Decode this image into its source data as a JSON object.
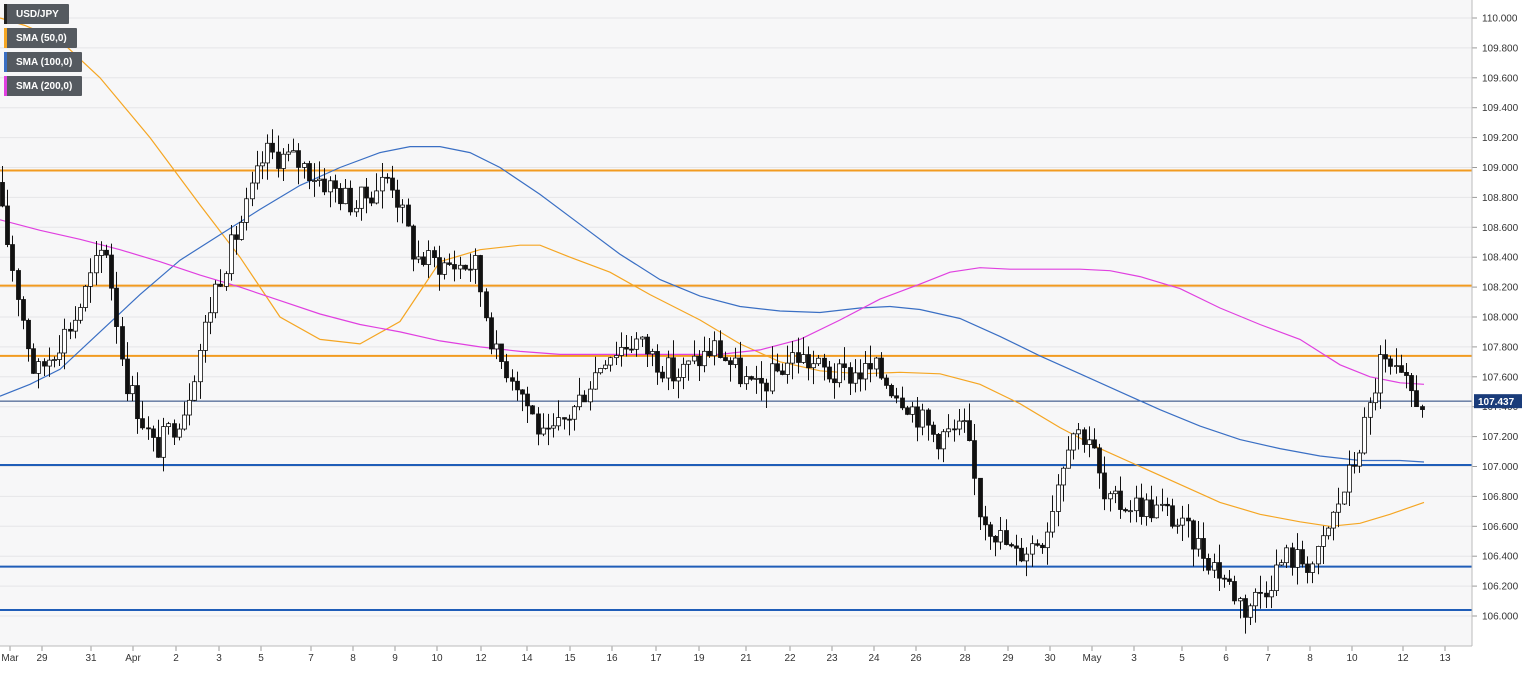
{
  "chart_data": {
    "type": "candlestick",
    "symbol": "USD/JPY",
    "last_price": "107.437",
    "legend": [
      {
        "label": "USD/JPY",
        "color": "#222222"
      },
      {
        "label": "SMA (50,0)",
        "color": "#f5a623"
      },
      {
        "label": "SMA (100,0)",
        "color": "#3a6fc4"
      },
      {
        "label": "SMA (200,0)",
        "color": "#e040e0"
      }
    ],
    "ylim": [
      105.9,
      110.1
    ],
    "y_ticks": [
      "106.000",
      "106.200",
      "106.400",
      "106.600",
      "106.800",
      "107.000",
      "107.200",
      "107.400",
      "107.600",
      "107.800",
      "108.000",
      "108.200",
      "108.400",
      "108.600",
      "108.800",
      "109.000",
      "109.200",
      "109.400",
      "109.600",
      "109.800",
      "110.000"
    ],
    "x_labels": [
      "Mar",
      "29",
      "31",
      "Apr",
      "2",
      "3",
      "5",
      "7",
      "8",
      "9",
      "10",
      "12",
      "14",
      "15",
      "16",
      "17",
      "19",
      "21",
      "22",
      "23",
      "24",
      "26",
      "28",
      "29",
      "30",
      "May",
      "3",
      "5",
      "6",
      "7",
      "8",
      "10",
      "12",
      "13"
    ],
    "resistance_levels": [
      108.98,
      108.21,
      107.74
    ],
    "support_levels": [
      107.01,
      106.33,
      106.04
    ],
    "sma50": [
      [
        0,
        110.0
      ],
      [
        25,
        109.95
      ],
      [
        60,
        109.85
      ],
      [
        100,
        109.6
      ],
      [
        150,
        109.2
      ],
      [
        200,
        108.75
      ],
      [
        240,
        108.4
      ],
      [
        280,
        108.0
      ],
      [
        320,
        107.85
      ],
      [
        360,
        107.82
      ],
      [
        400,
        107.97
      ],
      [
        440,
        108.37
      ],
      [
        480,
        108.45
      ],
      [
        520,
        108.48
      ],
      [
        540,
        108.48
      ],
      [
        570,
        108.4
      ],
      [
        610,
        108.3
      ],
      [
        650,
        108.15
      ],
      [
        700,
        107.98
      ],
      [
        740,
        107.82
      ],
      [
        780,
        107.7
      ],
      [
        820,
        107.64
      ],
      [
        860,
        107.62
      ],
      [
        900,
        107.63
      ],
      [
        940,
        107.62
      ],
      [
        980,
        107.55
      ],
      [
        1020,
        107.42
      ],
      [
        1060,
        107.26
      ],
      [
        1100,
        107.12
      ],
      [
        1140,
        107.0
      ],
      [
        1180,
        106.88
      ],
      [
        1220,
        106.76
      ],
      [
        1260,
        106.68
      ],
      [
        1300,
        106.63
      ],
      [
        1330,
        106.6
      ],
      [
        1360,
        106.62
      ],
      [
        1390,
        106.68
      ],
      [
        1424,
        106.76
      ]
    ],
    "sma100": [
      [
        0,
        107.47
      ],
      [
        30,
        107.55
      ],
      [
        60,
        107.65
      ],
      [
        100,
        107.9
      ],
      [
        140,
        108.15
      ],
      [
        180,
        108.38
      ],
      [
        220,
        108.55
      ],
      [
        260,
        108.72
      ],
      [
        300,
        108.88
      ],
      [
        340,
        109.0
      ],
      [
        380,
        109.1
      ],
      [
        410,
        109.14
      ],
      [
        440,
        109.14
      ],
      [
        470,
        109.1
      ],
      [
        500,
        109.0
      ],
      [
        540,
        108.82
      ],
      [
        580,
        108.62
      ],
      [
        620,
        108.42
      ],
      [
        660,
        108.25
      ],
      [
        700,
        108.14
      ],
      [
        740,
        108.07
      ],
      [
        780,
        108.04
      ],
      [
        820,
        108.03
      ],
      [
        860,
        108.06
      ],
      [
        890,
        108.07
      ],
      [
        920,
        108.05
      ],
      [
        960,
        107.99
      ],
      [
        1000,
        107.87
      ],
      [
        1040,
        107.74
      ],
      [
        1080,
        107.62
      ],
      [
        1120,
        107.5
      ],
      [
        1160,
        107.38
      ],
      [
        1200,
        107.27
      ],
      [
        1240,
        107.18
      ],
      [
        1280,
        107.12
      ],
      [
        1320,
        107.07
      ],
      [
        1360,
        107.04
      ],
      [
        1400,
        107.04
      ],
      [
        1424,
        107.03
      ]
    ],
    "sma200": [
      [
        0,
        108.65
      ],
      [
        40,
        108.58
      ],
      [
        80,
        108.52
      ],
      [
        120,
        108.45
      ],
      [
        160,
        108.37
      ],
      [
        200,
        108.28
      ],
      [
        240,
        108.2
      ],
      [
        280,
        108.11
      ],
      [
        320,
        108.02
      ],
      [
        360,
        107.95
      ],
      [
        400,
        107.9
      ],
      [
        440,
        107.84
      ],
      [
        480,
        107.8
      ],
      [
        520,
        107.77
      ],
      [
        560,
        107.75
      ],
      [
        600,
        107.75
      ],
      [
        640,
        107.75
      ],
      [
        680,
        107.75
      ],
      [
        720,
        107.75
      ],
      [
        760,
        107.78
      ],
      [
        800,
        107.85
      ],
      [
        840,
        107.98
      ],
      [
        880,
        108.12
      ],
      [
        920,
        108.22
      ],
      [
        950,
        108.3
      ],
      [
        980,
        108.33
      ],
      [
        1010,
        108.32
      ],
      [
        1040,
        108.32
      ],
      [
        1080,
        108.32
      ],
      [
        1110,
        108.31
      ],
      [
        1140,
        108.27
      ],
      [
        1180,
        108.19
      ],
      [
        1220,
        108.06
      ],
      [
        1260,
        107.95
      ],
      [
        1300,
        107.85
      ],
      [
        1340,
        107.68
      ],
      [
        1370,
        107.6
      ],
      [
        1400,
        107.56
      ],
      [
        1424,
        107.55
      ]
    ]
  }
}
